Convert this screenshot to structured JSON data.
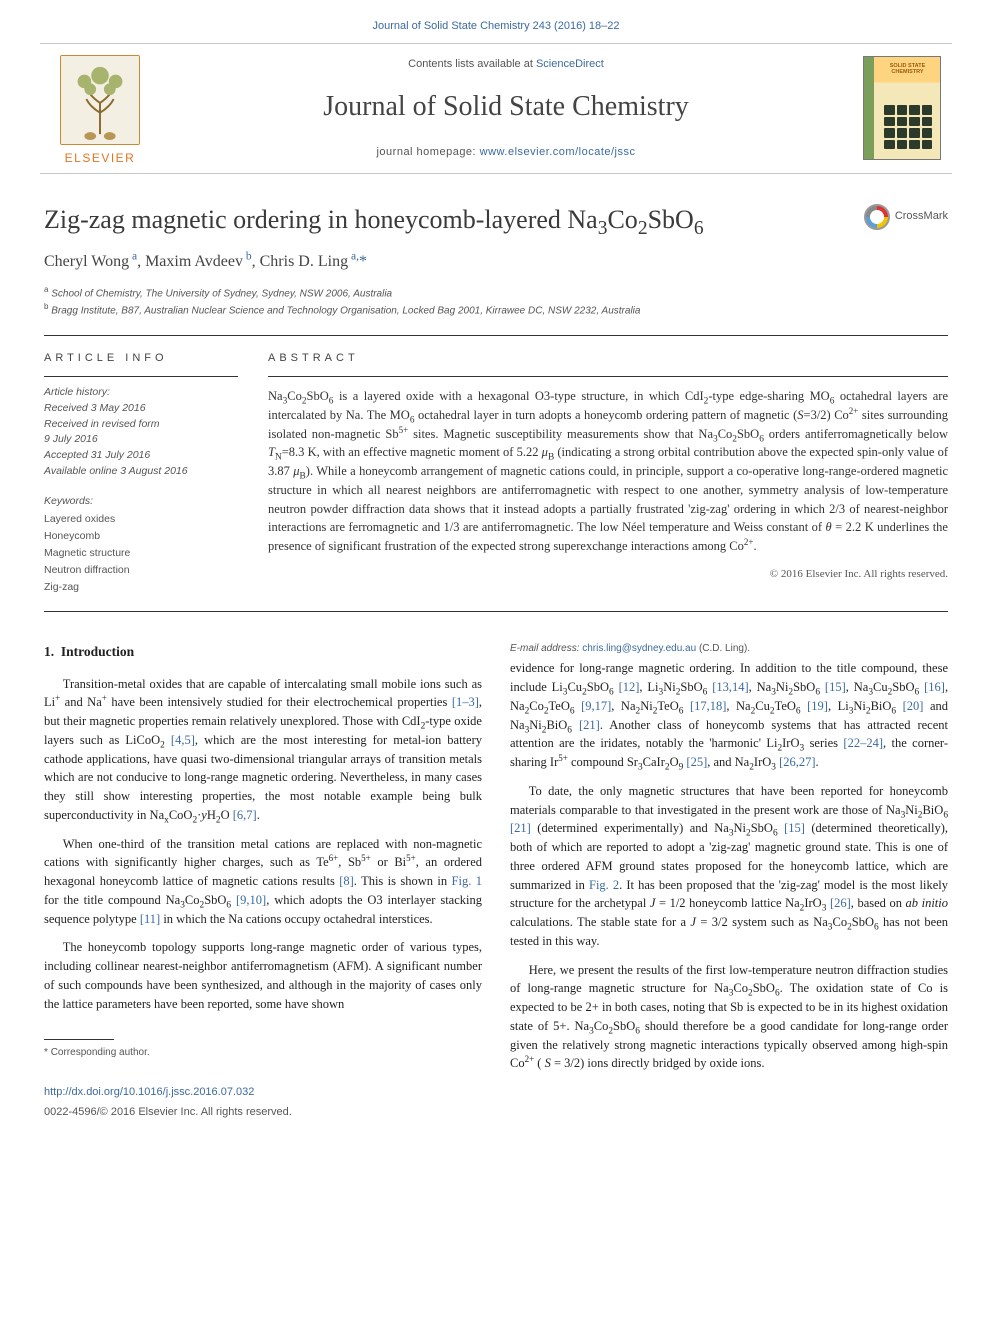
{
  "header": {
    "top_link_text": "Journal of Solid State Chemistry 243 (2016) 18–22",
    "contents_line_prefix": "Contents lists available at ",
    "contents_line_link": "ScienceDirect",
    "journal_title": "Journal of Solid State Chemistry",
    "homepage_prefix": "journal homepage: ",
    "homepage_link": "www.elsevier.com/locate/jssc",
    "publisher": "ELSEVIER",
    "cover_label": "SOLID STATE CHEMISTRY"
  },
  "article": {
    "title_html": "Zig-zag magnetic ordering in honeycomb-layered Na<sub>3</sub>Co<sub>2</sub>SbO<sub>6</sub>",
    "crossmark": "CrossMark",
    "authors_html": "Cheryl Wong<sup class=\"txt\"> a</sup>, Maxim Avdeev<sup class=\"txt\"> b</sup>, Chris D. Ling<sup class=\"txt\"> a,</sup><span class=\"ast\">*</span>",
    "affiliations": [
      {
        "sup": "a",
        "text": "School of Chemistry, The University of Sydney, Sydney, NSW 2006, Australia"
      },
      {
        "sup": "b",
        "text": "Bragg Institute, B87, Australian Nuclear Science and Technology Organisation, Locked Bag 2001, Kirrawee DC, NSW 2232, Australia"
      }
    ],
    "info_label": "ARTICLE INFO",
    "abs_label": "ABSTRACT",
    "history_label": "Article history:",
    "history_lines": [
      "Received 3 May 2016",
      "Received in revised form",
      "9 July 2016",
      "Accepted 31 July 2016",
      "Available online 3 August 2016"
    ],
    "keywords_label": "Keywords:",
    "keywords": [
      "Layered oxides",
      "Honeycomb",
      "Magnetic structure",
      "Neutron diffraction",
      "Zig-zag"
    ],
    "abstract_html": "Na<sub>3</sub>Co<sub>2</sub>SbO<sub>6</sub> is a layered oxide with a hexagonal O3-type structure, in which CdI<sub>2</sub>-type edge-sharing MO<sub>6</sub> octahedral layers are intercalated by Na. The MO<sub>6</sub> octahedral layer in turn adopts a honeycomb ordering pattern of magnetic (<i>S</i>=3/2) Co<sup class=\"txt\">2+</sup> sites surrounding isolated non-magnetic Sb<sup class=\"txt\">5+</sup> sites. Magnetic susceptibility measurements show that Na<sub>3</sub>Co<sub>2</sub>SbO<sub>6</sub> orders antiferromagnetically below <i>T</i><sub>N</sub>=8.3 K, with an effective magnetic moment of 5.22 <i>μ</i><sub>B</sub> (indicating a strong orbital contribution above the expected spin-only value of 3.87 <i>μ</i><sub>B</sub>). While a honeycomb arrangement of magnetic cations could, in principle, support a co-operative long-range-ordered magnetic structure in which all nearest neighbors are antiferromagnetic with respect to one another, symmetry analysis of low-temperature neutron powder diffraction data shows that it instead adopts a partially frustrated 'zig-zag' ordering in which 2/3 of nearest-neighbor interactions are ferromagnetic and 1/3 are antiferromagnetic. The low Néel temperature and Weiss constant of <i>θ</i> = 2.2 K underlines the presence of significant frustration of the expected strong superexchange interactions among Co<sup class=\"txt\">2+</sup>.",
    "copyright": "© 2016 Elsevier Inc. All rights reserved."
  },
  "body": {
    "section_number": "1.",
    "section_title": "Introduction",
    "p1_html": "Transition-metal oxides that are capable of intercalating small mobile ions such as Li<sup class=\"txt\">+</sup> and Na<sup class=\"txt\">+</sup> have been intensively studied for their electrochemical properties <span class=\"link\">[1–3]</span>, but their magnetic properties remain relatively unexplored. Those with CdI<sub>2</sub>-type oxide layers such as LiCoO<sub>2</sub> <span class=\"link\">[4,5]</span>, which are the most interesting for metal-ion battery cathode applications, have quasi two-dimensional triangular arrays of transition metals which are not conducive to long-range magnetic ordering. Nevertheless, in many cases they still show interesting properties, the most notable example being bulk superconductivity in Na<sub>x</sub>CoO<sub>2</sub>·<i>y</i>H<sub>2</sub>O <span class=\"link\">[6,7]</span>.",
    "p2_html": "When one-third of the transition metal cations are replaced with non-magnetic cations with significantly higher charges, such as Te<sup class=\"txt\">6+</sup>, Sb<sup class=\"txt\">5+</sup> or Bi<sup class=\"txt\">5+</sup>, an ordered hexagonal honeycomb lattice of magnetic cations results <span class=\"link\">[8]</span>. This is shown in <span class=\"link\">Fig. 1</span> for the title compound Na<sub>3</sub>Co<sub>2</sub>SbO<sub>6</sub> <span class=\"link\">[9,10]</span>, which adopts the O3 interlayer stacking sequence polytype <span class=\"link\">[11]</span> in which the Na cations occupy octahedral interstices.",
    "p3_html": "The honeycomb topology supports long-range magnetic order of various types, including collinear nearest-neighbor antiferromagnetism (AFM). A significant number of such compounds have been synthesized, and although in the majority of cases only the lattice parameters have been reported, some have shown",
    "p4_html": "evidence for long-range magnetic ordering. In addition to the title compound, these include Li<sub>3</sub>Cu<sub>2</sub>SbO<sub>6</sub> <span class=\"link\">[12]</span>, Li<sub>3</sub>Ni<sub>2</sub>SbO<sub>6</sub> <span class=\"link\">[13,14]</span>, Na<sub>3</sub>Ni<sub>2</sub>SbO<sub>6</sub> <span class=\"link\">[15]</span>, Na<sub>3</sub>Cu<sub>2</sub>SbO<sub>6</sub> <span class=\"link\">[16]</span>, Na<sub>2</sub>Co<sub>2</sub>TeO<sub>6</sub> <span class=\"link\">[9,17]</span>, Na<sub>2</sub>Ni<sub>2</sub>TeO<sub>6</sub> <span class=\"link\">[17,18]</span>, Na<sub>2</sub>Cu<sub>2</sub>TeO<sub>6</sub> <span class=\"link\">[19]</span>, Li<sub>3</sub>Ni<sub>2</sub>BiO<sub>6</sub> <span class=\"link\">[20]</span> and Na<sub>3</sub>Ni<sub>2</sub>BiO<sub>6</sub> <span class=\"link\">[21]</span>. Another class of honeycomb systems that has attracted recent attention are the iridates, notably the 'harmonic' Li<sub>2</sub>IrO<sub>3</sub> series <span class=\"link\">[22–24]</span>, the corner-sharing Ir<sup class=\"txt\">5+</sup> compound Sr<sub>3</sub>CaIr<sub>2</sub>O<sub>9</sub> <span class=\"link\">[25]</span>, and Na<sub>2</sub>IrO<sub>3</sub> <span class=\"link\">[26,27]</span>.",
    "p5_html": "To date, the only magnetic structures that have been reported for honeycomb materials comparable to that investigated in the present work are those of Na<sub>3</sub>Ni<sub>2</sub>BiO<sub>6</sub> <span class=\"link\">[21]</span> (determined experimentally) and Na<sub>3</sub>Ni<sub>2</sub>SbO<sub>6</sub> <span class=\"link\">[15]</span> (determined theoretically), both of which are reported to adopt a 'zig-zag' magnetic ground state. This is one of three ordered AFM ground states proposed for the honeycomb lattice, which are summarized in <span class=\"link\">Fig. 2</span>. It has been proposed that the 'zig-zag' model is the most likely structure for the archetypal <i>J</i> = 1/2 honeycomb lattice Na<sub>2</sub>IrO<sub>3</sub> <span class=\"link\">[26]</span>, based on <i>ab initio</i> calculations. The stable state for a <i>J</i> = 3/2 system such as Na<sub>3</sub>Co<sub>2</sub>SbO<sub>6</sub> has not been tested in this way.",
    "p6_html": "Here, we present the results of the first low-temperature neutron diffraction studies of long-range magnetic structure for Na<sub>3</sub>Co<sub>2</sub>SbO<sub>6</sub>. The oxidation state of Co is expected to be 2+ in both cases, noting that Sb is expected to be in its highest oxidation state of 5+. Na<sub>3</sub>Co<sub>2</sub>SbO<sub>6</sub> should therefore be a good candidate for long-range order given the relatively strong magnetic interactions typically observed among high-spin Co<sup class=\"txt\">2+</sup> ( <i>S</i> = 3/2) ions directly bridged by oxide ions."
  },
  "footnotes": {
    "corresponding": "Corresponding author.",
    "email_label": "E-mail address:",
    "email": "chris.ling@sydney.edu.au",
    "email_suffix": "(C.D. Ling)."
  },
  "bottom": {
    "doi": "http://dx.doi.org/10.1016/j.jssc.2016.07.032",
    "issn": "0022-4596/© 2016 Elsevier Inc. All rights reserved."
  },
  "colors": {
    "link": "#3b6aa0",
    "publisher": "#e6751f",
    "text": "#333333",
    "muted": "#555555",
    "rule": "#333333"
  },
  "typography": {
    "journal_title_pt": 28,
    "article_title_pt": 26,
    "authors_pt": 16,
    "body_pt": 12.5,
    "meta_pt": 10.5,
    "footnote_pt": 10
  }
}
